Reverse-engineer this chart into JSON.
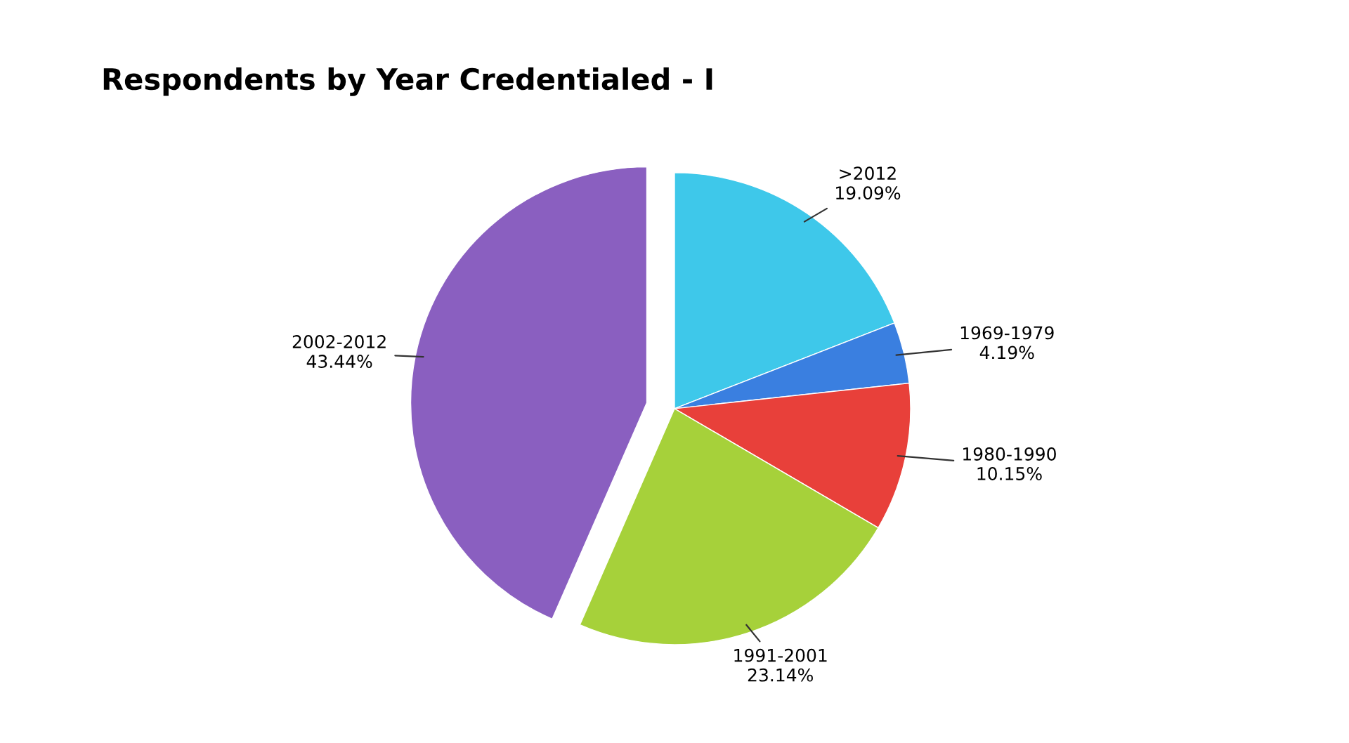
{
  "chart_data": {
    "type": "pie",
    "title": "Respondents by Year Credentialed - I",
    "categories": [
      ">2012",
      "1969-1979",
      "1980-1990",
      "1991-2001",
      "2002-2012"
    ],
    "values": [
      19.09,
      4.19,
      10.15,
      23.14,
      43.44
    ],
    "value_labels": [
      "19.09%",
      "4.19%",
      "10.15%",
      "23.14%",
      "43.44%"
    ],
    "colors": [
      "#3ec8ea",
      "#3a7fe0",
      "#e8403a",
      "#a6d13a",
      "#8a5fc0"
    ],
    "legend": false
  }
}
